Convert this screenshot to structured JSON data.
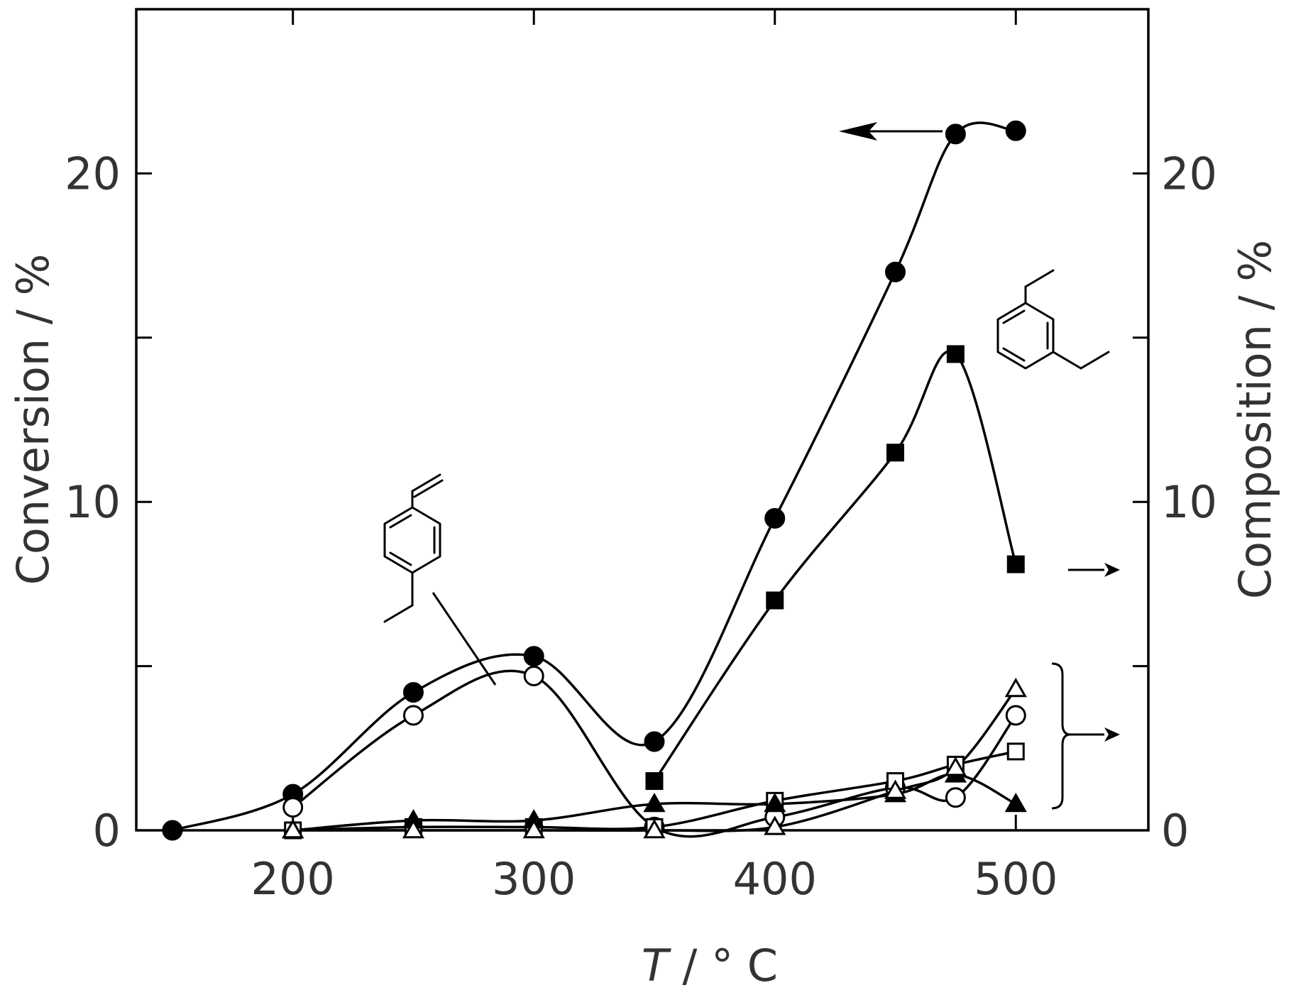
{
  "chart_data": {
    "type": "line",
    "title": "",
    "xlabel_italic": "T",
    "xlabel_rest": " / ° C",
    "ylabel_left": "Conversion / %",
    "ylabel_right": "Composition / %",
    "xlim": [
      135,
      555
    ],
    "ylim": [
      0,
      25
    ],
    "y2lim": [
      0,
      25
    ],
    "grid": false,
    "legend": "none",
    "x_ticks": [
      200,
      300,
      400,
      500
    ],
    "y_ticks": [
      0,
      10,
      20
    ],
    "y2_ticks": [
      0,
      10,
      20
    ],
    "x_tick_labels": [
      "200",
      "300",
      "400",
      "500"
    ],
    "y_tick_labels": [
      "0",
      "10",
      "20"
    ],
    "y2_tick_labels": [
      "0",
      "10",
      "20"
    ],
    "series": [
      {
        "marker": "filled-circle",
        "axis": "left",
        "x": [
          150,
          200,
          250,
          300,
          350,
          400,
          450,
          475,
          500
        ],
        "y": [
          0,
          1.1,
          4.2,
          5.3,
          2.7,
          9.5,
          17.0,
          21.2,
          21.3
        ]
      },
      {
        "marker": "open-circle",
        "axis": "right",
        "x": [
          200,
          250,
          300,
          350,
          400,
          450,
          475,
          500
        ],
        "y": [
          0.7,
          3.5,
          4.7,
          0.1,
          0.4,
          1.3,
          1.0,
          3.5
        ]
      },
      {
        "marker": "filled-square",
        "axis": "right",
        "x": [
          350,
          400,
          450,
          475,
          500
        ],
        "y": [
          1.5,
          7.0,
          11.5,
          14.5,
          8.1
        ]
      },
      {
        "marker": "open-square",
        "axis": "right",
        "x": [
          200,
          250,
          300,
          350,
          400,
          450,
          475,
          500
        ],
        "y": [
          0.0,
          0.1,
          0.1,
          0.1,
          0.9,
          1.5,
          2.0,
          2.4
        ]
      },
      {
        "marker": "filled-triangle",
        "axis": "right",
        "x": [
          200,
          250,
          300,
          350,
          400,
          450,
          475,
          500
        ],
        "y": [
          0.0,
          0.3,
          0.3,
          0.8,
          0.8,
          1.1,
          1.7,
          0.8
        ]
      },
      {
        "marker": "open-triangle",
        "axis": "right",
        "x": [
          200,
          250,
          300,
          350,
          400,
          450,
          475,
          500
        ],
        "y": [
          0.0,
          0.0,
          0.0,
          0.0,
          0.1,
          1.2,
          1.9,
          4.3
        ]
      }
    ],
    "annotations": [
      {
        "type": "structure",
        "name": "p-ethylstyrene"
      },
      {
        "type": "structure",
        "name": "m-diethylbenzene"
      }
    ]
  }
}
